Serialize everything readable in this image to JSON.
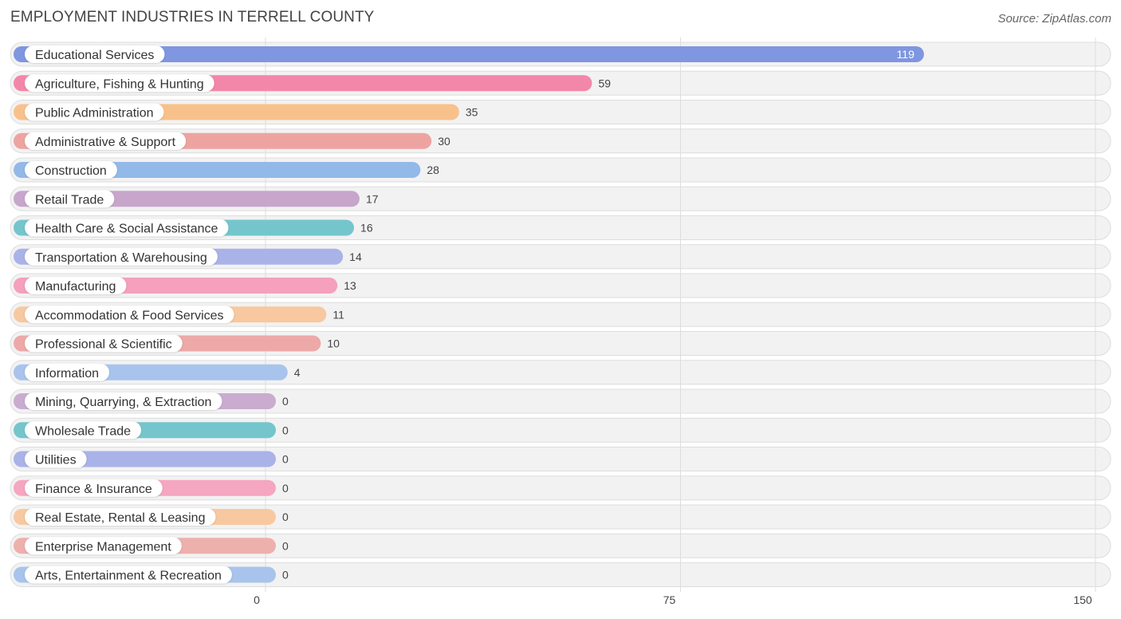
{
  "header": {
    "title": "EMPLOYMENT INDUSTRIES IN TERRELL COUNTY",
    "source": "Source: ZipAtlas.com"
  },
  "chart_data": {
    "type": "bar",
    "orientation": "horizontal",
    "title": "EMPLOYMENT INDUSTRIES IN TERRELL COUNTY",
    "xlabel": "",
    "ylabel": "",
    "xlim": [
      0,
      150
    ],
    "ticks": [
      0,
      75,
      150
    ],
    "tick_labels": [
      "0",
      "75",
      "150"
    ],
    "grid": true,
    "categories": [
      "Educational Services",
      "Agriculture, Fishing & Hunting",
      "Public Administration",
      "Administrative & Support",
      "Construction",
      "Retail Trade",
      "Health Care & Social Assistance",
      "Transportation & Warehousing",
      "Manufacturing",
      "Accommodation & Food Services",
      "Professional & Scientific",
      "Information",
      "Mining, Quarrying, & Extraction",
      "Wholesale Trade",
      "Utilities",
      "Finance & Insurance",
      "Real Estate, Rental & Leasing",
      "Enterprise Management",
      "Arts, Entertainment & Recreation"
    ],
    "values": [
      119,
      59,
      35,
      30,
      28,
      17,
      16,
      14,
      13,
      11,
      10,
      4,
      0,
      0,
      0,
      0,
      0,
      0,
      0
    ],
    "value_labels": [
      "119",
      "59",
      "35",
      "30",
      "28",
      "17",
      "16",
      "14",
      "13",
      "11",
      "10",
      "4",
      "0",
      "0",
      "0",
      "0",
      "0",
      "0",
      "0"
    ],
    "colors": [
      "#7f96e0",
      "#f387aa",
      "#f8c18c",
      "#eda4a1",
      "#92b9e8",
      "#c8a6cc",
      "#74c6cc",
      "#aab3e8",
      "#f5a0bd",
      "#f8c8a0",
      "#eda9a7",
      "#a8c4ec",
      "#c9acd0",
      "#74c6cc",
      "#aab3e8",
      "#f5a6c1",
      "#f8c9a0",
      "#eeb0ad",
      "#a8c4ec"
    ]
  }
}
